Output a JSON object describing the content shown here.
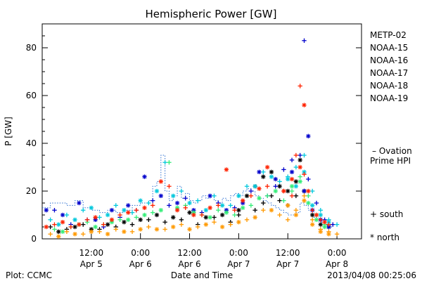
{
  "chart_data": {
    "type": "scatter",
    "title": "Hemispheric Power [GW]",
    "ylabel": "P [GW]",
    "xlabel": "Date and Time",
    "ylim": [
      0,
      90
    ],
    "xlim": [
      0,
      78
    ],
    "yticks": [
      0,
      20,
      40,
      60,
      80
    ],
    "xticks": [
      {
        "x": 12,
        "line1": "12:00",
        "line2": "Apr 5"
      },
      {
        "x": 24,
        "line1": "0:00",
        "line2": "Apr 6"
      },
      {
        "x": 36,
        "line1": "12:00",
        "line2": "Apr 6"
      },
      {
        "x": 48,
        "line1": "0:00",
        "line2": "Apr 7"
      },
      {
        "x": 60,
        "line1": "12:00",
        "line2": "Apr 7"
      },
      {
        "x": 72,
        "line1": "0:00",
        "line2": "Apr 8"
      }
    ],
    "footer_left": "Plot: CCMC",
    "footer_right": "2013/04/08 00:25:06",
    "legend_right": {
      "series_names": [
        "METP-02",
        "NOAA-15",
        "NOAA-16",
        "NOAA-17",
        "NOAA-18",
        "NOAA-19"
      ],
      "ovation_label": "– Ovation",
      "ovation_sub": "Prime HPI",
      "south_label": "+ south",
      "north_label": "* north"
    },
    "series": [
      {
        "name": "METP-02",
        "color": "#000000",
        "south_points": [
          [
            2,
            5
          ],
          [
            6,
            4
          ],
          [
            10,
            6
          ],
          [
            14,
            4
          ],
          [
            18,
            5
          ],
          [
            22,
            6
          ],
          [
            26,
            8
          ],
          [
            30,
            7
          ],
          [
            34,
            8
          ],
          [
            38,
            6
          ],
          [
            42,
            9
          ],
          [
            46,
            7
          ],
          [
            48,
            10
          ],
          [
            52,
            12
          ],
          [
            54,
            15
          ],
          [
            56,
            18
          ],
          [
            58,
            16
          ],
          [
            60,
            14
          ],
          [
            62,
            18
          ],
          [
            64,
            20
          ]
        ],
        "north_points": [
          [
            4,
            3
          ],
          [
            8,
            5
          ],
          [
            12,
            4
          ],
          [
            16,
            6
          ],
          [
            20,
            7
          ],
          [
            24,
            8
          ],
          [
            28,
            10
          ],
          [
            32,
            9
          ],
          [
            36,
            11
          ],
          [
            40,
            9
          ],
          [
            44,
            10
          ],
          [
            48,
            12
          ],
          [
            50,
            18
          ],
          [
            52,
            22
          ],
          [
            54,
            26
          ],
          [
            56,
            28
          ],
          [
            58,
            22
          ],
          [
            60,
            20
          ],
          [
            62,
            24
          ],
          [
            63,
            33
          ],
          [
            64,
            20
          ],
          [
            66,
            10
          ],
          [
            68,
            6
          ],
          [
            70,
            5
          ]
        ]
      },
      {
        "name": "NOAA-15",
        "color": "#0000cc",
        "south_points": [
          [
            3,
            12
          ],
          [
            7,
            6
          ],
          [
            11,
            8
          ],
          [
            15,
            5
          ],
          [
            19,
            9
          ],
          [
            23,
            12
          ],
          [
            27,
            16
          ],
          [
            31,
            14
          ],
          [
            35,
            17
          ],
          [
            39,
            11
          ],
          [
            43,
            15
          ],
          [
            47,
            13
          ],
          [
            51,
            20
          ],
          [
            55,
            18
          ],
          [
            57,
            22
          ],
          [
            59,
            29
          ],
          [
            61,
            33
          ],
          [
            63,
            35
          ],
          [
            64,
            83
          ],
          [
            65,
            25
          ],
          [
            67,
            15
          ],
          [
            69,
            8
          ],
          [
            71,
            6
          ]
        ],
        "north_points": [
          [
            1,
            12
          ],
          [
            5,
            10
          ],
          [
            9,
            15
          ],
          [
            13,
            8
          ],
          [
            17,
            12
          ],
          [
            21,
            14
          ],
          [
            25,
            26
          ],
          [
            29,
            18
          ],
          [
            33,
            15
          ],
          [
            37,
            12
          ],
          [
            41,
            18
          ],
          [
            45,
            12
          ],
          [
            49,
            15
          ],
          [
            53,
            28
          ],
          [
            57,
            25
          ],
          [
            61,
            28
          ],
          [
            64,
            20
          ],
          [
            65,
            43
          ],
          [
            66,
            12
          ],
          [
            68,
            8
          ],
          [
            70,
            5
          ]
        ]
      },
      {
        "name": "NOAA-16",
        "color": "#00c8dc",
        "south_points": [
          [
            2,
            8
          ],
          [
            6,
            10
          ],
          [
            10,
            12
          ],
          [
            14,
            9
          ],
          [
            18,
            14
          ],
          [
            22,
            11
          ],
          [
            26,
            15
          ],
          [
            30,
            32
          ],
          [
            34,
            20
          ],
          [
            38,
            16
          ],
          [
            42,
            18
          ],
          [
            46,
            14
          ],
          [
            50,
            22
          ],
          [
            54,
            28
          ],
          [
            58,
            24
          ],
          [
            60,
            26
          ],
          [
            62,
            30
          ],
          [
            64,
            35
          ],
          [
            66,
            20
          ],
          [
            68,
            12
          ],
          [
            70,
            8
          ],
          [
            72,
            6
          ]
        ],
        "north_points": [
          [
            4,
            6
          ],
          [
            8,
            8
          ],
          [
            12,
            13
          ],
          [
            16,
            10
          ],
          [
            20,
            12
          ],
          [
            24,
            16
          ],
          [
            28,
            20
          ],
          [
            32,
            18
          ],
          [
            36,
            15
          ],
          [
            40,
            12
          ],
          [
            44,
            14
          ],
          [
            48,
            18
          ],
          [
            52,
            22
          ],
          [
            56,
            26
          ],
          [
            60,
            25
          ],
          [
            62,
            22
          ],
          [
            64,
            28
          ],
          [
            66,
            14
          ],
          [
            68,
            10
          ],
          [
            70,
            7
          ]
        ]
      },
      {
        "name": "NOAA-17",
        "color": "#33ee77",
        "south_points": [
          [
            3,
            4
          ],
          [
            7,
            5
          ],
          [
            11,
            7
          ],
          [
            15,
            6
          ],
          [
            19,
            8
          ],
          [
            23,
            9
          ],
          [
            27,
            11
          ],
          [
            31,
            32
          ],
          [
            35,
            14
          ],
          [
            39,
            10
          ],
          [
            43,
            12
          ],
          [
            47,
            10
          ],
          [
            51,
            14
          ],
          [
            55,
            18
          ],
          [
            59,
            16
          ],
          [
            61,
            20
          ],
          [
            63,
            26
          ],
          [
            65,
            18
          ],
          [
            67,
            10
          ],
          [
            69,
            6
          ]
        ],
        "north_points": [
          [
            5,
            3
          ],
          [
            9,
            6
          ],
          [
            13,
            5
          ],
          [
            17,
            7
          ],
          [
            21,
            8
          ],
          [
            25,
            10
          ],
          [
            29,
            12
          ],
          [
            33,
            13
          ],
          [
            37,
            11
          ],
          [
            41,
            9
          ],
          [
            45,
            11
          ],
          [
            49,
            13
          ],
          [
            53,
            17
          ],
          [
            57,
            20
          ],
          [
            61,
            22
          ],
          [
            63,
            24
          ],
          [
            65,
            15
          ],
          [
            67,
            8
          ],
          [
            69,
            5
          ]
        ]
      },
      {
        "name": "NOAA-18",
        "color": "#ff9900",
        "south_points": [
          [
            2,
            2
          ],
          [
            6,
            3
          ],
          [
            10,
            2
          ],
          [
            14,
            3
          ],
          [
            18,
            4
          ],
          [
            22,
            3
          ],
          [
            26,
            5
          ],
          [
            30,
            4
          ],
          [
            34,
            6
          ],
          [
            38,
            5
          ],
          [
            42,
            7
          ],
          [
            46,
            6
          ],
          [
            50,
            8
          ],
          [
            54,
            12
          ],
          [
            58,
            10
          ],
          [
            60,
            8
          ],
          [
            62,
            12
          ],
          [
            64,
            18
          ],
          [
            66,
            8
          ],
          [
            68,
            4
          ],
          [
            70,
            3
          ],
          [
            72,
            2
          ]
        ],
        "north_points": [
          [
            4,
            1
          ],
          [
            8,
            2
          ],
          [
            12,
            3
          ],
          [
            16,
            2
          ],
          [
            20,
            3
          ],
          [
            24,
            4
          ],
          [
            28,
            4
          ],
          [
            32,
            5
          ],
          [
            36,
            4
          ],
          [
            40,
            6
          ],
          [
            44,
            5
          ],
          [
            48,
            7
          ],
          [
            52,
            9
          ],
          [
            56,
            12
          ],
          [
            60,
            14
          ],
          [
            62,
            10
          ],
          [
            64,
            16
          ],
          [
            66,
            6
          ],
          [
            68,
            3
          ],
          [
            70,
            2
          ]
        ]
      },
      {
        "name": "NOAA-19",
        "color": "#ff2200",
        "south_points": [
          [
            3,
            6
          ],
          [
            7,
            5
          ],
          [
            11,
            8
          ],
          [
            15,
            6
          ],
          [
            19,
            10
          ],
          [
            23,
            12
          ],
          [
            27,
            14
          ],
          [
            31,
            22
          ],
          [
            35,
            13
          ],
          [
            39,
            10
          ],
          [
            43,
            14
          ],
          [
            47,
            12
          ],
          [
            51,
            18
          ],
          [
            55,
            22
          ],
          [
            59,
            20
          ],
          [
            61,
            18
          ],
          [
            62,
            35
          ],
          [
            63,
            64
          ],
          [
            64,
            27
          ],
          [
            66,
            12
          ],
          [
            68,
            8
          ],
          [
            70,
            6
          ]
        ],
        "north_points": [
          [
            1,
            5
          ],
          [
            5,
            7
          ],
          [
            9,
            6
          ],
          [
            13,
            9
          ],
          [
            17,
            8
          ],
          [
            21,
            11
          ],
          [
            25,
            13
          ],
          [
            29,
            24
          ],
          [
            33,
            12
          ],
          [
            37,
            10
          ],
          [
            41,
            13
          ],
          [
            45,
            29
          ],
          [
            49,
            16
          ],
          [
            53,
            21
          ],
          [
            55,
            30
          ],
          [
            59,
            20
          ],
          [
            61,
            25
          ],
          [
            63,
            30
          ],
          [
            64,
            56
          ],
          [
            65,
            20
          ],
          [
            67,
            10
          ],
          [
            69,
            7
          ]
        ]
      }
    ],
    "ovation_line": {
      "name": "Ovation Prime HPI",
      "color": "#2b6fd1",
      "points": [
        [
          0,
          13
        ],
        [
          2,
          15
        ],
        [
          4,
          15
        ],
        [
          6,
          14
        ],
        [
          8,
          16
        ],
        [
          10,
          13
        ],
        [
          12,
          12
        ],
        [
          14,
          11
        ],
        [
          16,
          12
        ],
        [
          18,
          11
        ],
        [
          20,
          12
        ],
        [
          22,
          14
        ],
        [
          24,
          15
        ],
        [
          26,
          16
        ],
        [
          27,
          22
        ],
        [
          28,
          24
        ],
        [
          29,
          35
        ],
        [
          30,
          20
        ],
        [
          31,
          16
        ],
        [
          32,
          18
        ],
        [
          33,
          22
        ],
        [
          34,
          17
        ],
        [
          35,
          19
        ],
        [
          36,
          16
        ],
        [
          37,
          15
        ],
        [
          38,
          16
        ],
        [
          39,
          18
        ],
        [
          40,
          17
        ],
        [
          41,
          18
        ],
        [
          42,
          16
        ],
        [
          43,
          15
        ],
        [
          44,
          17
        ],
        [
          45,
          16
        ],
        [
          46,
          18
        ],
        [
          47,
          19
        ],
        [
          48,
          18
        ],
        [
          49,
          20
        ],
        [
          50,
          21
        ],
        [
          51,
          20
        ],
        [
          52,
          18
        ],
        [
          53,
          17
        ],
        [
          54,
          16
        ],
        [
          55,
          15
        ],
        [
          56,
          14
        ],
        [
          57,
          13
        ],
        [
          58,
          12
        ],
        [
          59,
          11
        ],
        [
          60,
          10
        ],
        [
          61,
          10
        ],
        [
          62,
          11
        ],
        [
          63,
          15
        ],
        [
          64,
          14
        ],
        [
          65,
          12
        ],
        [
          66,
          9
        ],
        [
          67,
          8
        ],
        [
          68,
          7
        ],
        [
          69,
          6
        ],
        [
          70,
          5
        ],
        [
          71,
          5
        ]
      ]
    }
  }
}
